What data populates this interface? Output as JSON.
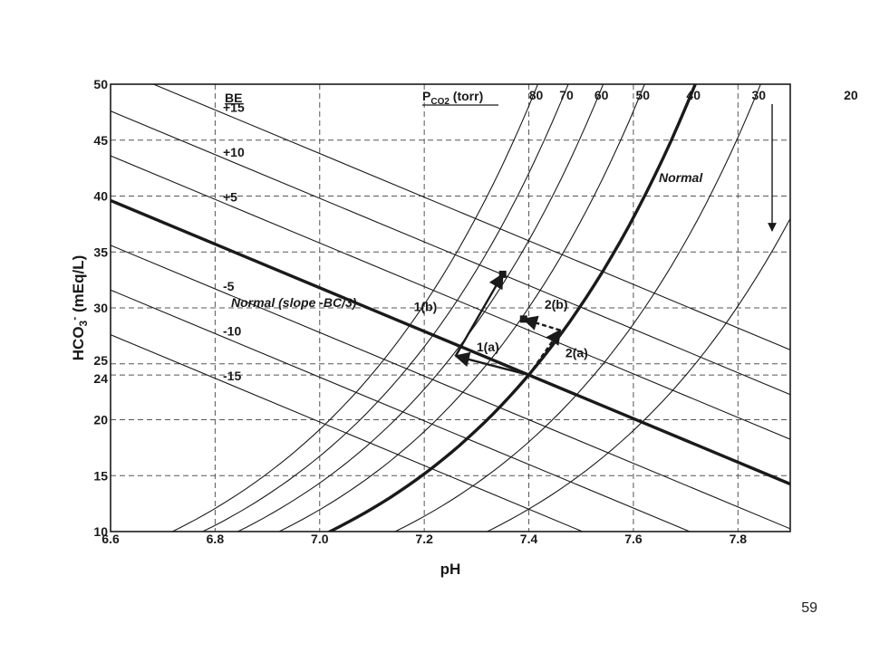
{
  "page": {
    "number": "59"
  },
  "chart_data": {
    "type": "line",
    "xlabel": "pH",
    "ylabel": "HCO3- (mEq/L)",
    "xlim": [
      6.6,
      7.9
    ],
    "ylim": [
      10,
      50
    ],
    "x_ticks": [
      "6.6",
      "6.8",
      "7.0",
      "7.2",
      "7.4",
      "7.6",
      "7.8"
    ],
    "y_ticks": [
      "10",
      "15",
      "20",
      "24",
      "25",
      "30",
      "35",
      "40",
      "45",
      "50"
    ],
    "grid": true,
    "legend_title_be": "BE",
    "legend_title_pco2": "P",
    "legend_title_pco2_sub": "CO2",
    "legend_title_pco2_unit": "(torr)",
    "isobar_pco2": [
      {
        "label": "80",
        "value": 80
      },
      {
        "label": "70",
        "value": 70
      },
      {
        "label": "60",
        "value": 60
      },
      {
        "label": "50",
        "value": 50
      },
      {
        "label": "40",
        "value": 40
      },
      {
        "label": "30",
        "value": 30
      },
      {
        "label": "20",
        "value": 20
      }
    ],
    "isobar_normal_label": "Normal",
    "be_lines": [
      {
        "label": "+15",
        "value": 15
      },
      {
        "label": "+10",
        "value": 10
      },
      {
        "label": "+5",
        "value": 5
      },
      {
        "label": "",
        "value": 0
      },
      {
        "label": "-5",
        "value": -5
      },
      {
        "label": "-10",
        "value": -10
      },
      {
        "label": "-15",
        "value": -15
      }
    ],
    "be_normal_label": "Normal (slope -BC/3)",
    "normal_point": {
      "pH": 7.4,
      "HCO3": 24
    },
    "annotations": [
      {
        "label": "1(a)"
      },
      {
        "label": "1(b)"
      },
      {
        "label": "2(a)"
      },
      {
        "label": "2(b)"
      }
    ],
    "paths": {
      "p1a": {
        "from": [
          7.4,
          24
        ],
        "to": [
          7.26,
          25.7
        ]
      },
      "p1b": {
        "from": [
          7.26,
          25.7
        ],
        "to": [
          7.35,
          33
        ]
      },
      "p2a": {
        "from": [
          7.4,
          24
        ],
        "to": [
          7.46,
          28
        ]
      },
      "p2b": {
        "from": [
          7.46,
          28
        ],
        "to": [
          7.39,
          29
        ]
      }
    }
  }
}
